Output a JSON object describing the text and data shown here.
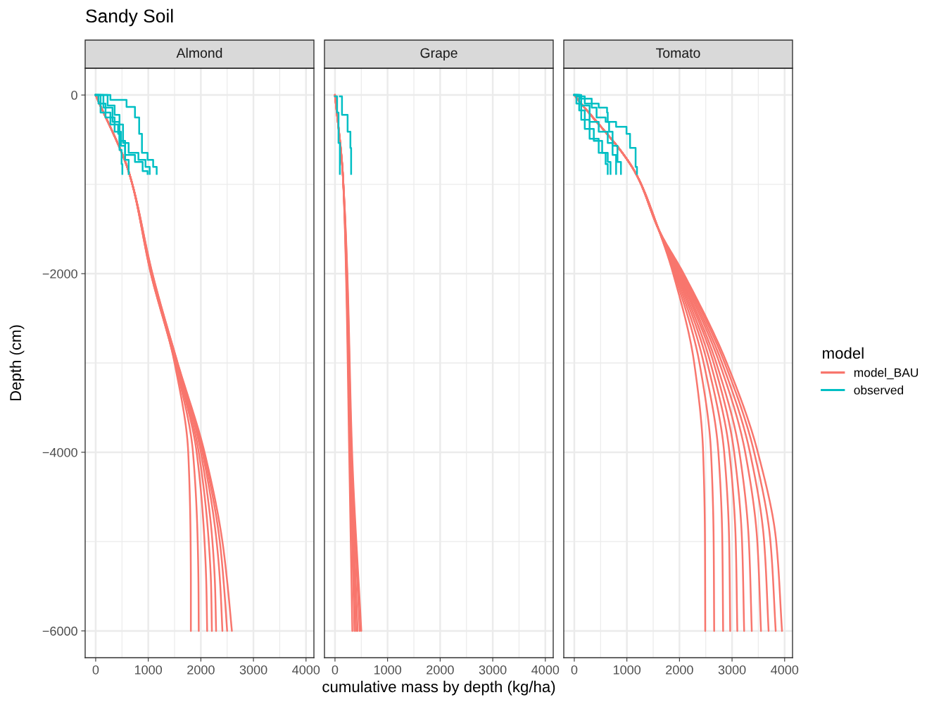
{
  "chart_data": [
    {
      "type": "line",
      "title": "Almond",
      "ylabel": "Depth (cm)",
      "annotations": [
        "Sandy Soil"
      ],
      "legend_title": "model",
      "legend": "right",
      "xlim": [
        -200,
        4150
      ],
      "ylim": [
        -6300,
        300
      ],
      "xticks": [
        0,
        1000,
        2000,
        3000,
        4000
      ],
      "yticks": [
        {
          "value": 0,
          "label": "0"
        },
        {
          "value": -2000,
          "label": "−2000"
        },
        {
          "value": -4000,
          "label": "−4000"
        },
        {
          "value": -6000,
          "label": "−6000"
        }
      ],
      "grid": true,
      "series": [
        {
          "name": "model_BAU",
          "color": "#f8766d",
          "x": [
            0,
            650,
            1050,
            1500,
            1760,
            1805,
            1810,
            1810
          ],
          "values": [
            0,
            -900,
            -2000,
            -3000,
            -4000,
            -5000,
            -5500,
            -6000
          ]
        },
        {
          "color": "#f8766d",
          "x": [
            0,
            650,
            1050,
            1510,
            1850,
            1940,
            1955,
            1960
          ],
          "values": [
            0,
            -900,
            -2000,
            -3000,
            -4000,
            -5000,
            -5500,
            -6000
          ]
        },
        {
          "color": "#f8766d",
          "x": [
            0,
            650,
            1060,
            1520,
            1920,
            2070,
            2105,
            2120
          ],
          "values": [
            0,
            -900,
            -2000,
            -3000,
            -4000,
            -5000,
            -5500,
            -6000
          ]
        },
        {
          "color": "#f8766d",
          "x": [
            0,
            650,
            1060,
            1530,
            1960,
            2150,
            2195,
            2210
          ],
          "values": [
            0,
            -900,
            -2000,
            -3000,
            -4000,
            -5000,
            -5500,
            -6000
          ]
        },
        {
          "color": "#f8766d",
          "x": [
            0,
            650,
            1065,
            1540,
            2000,
            2220,
            2270,
            2290
          ],
          "values": [
            0,
            -900,
            -2000,
            -3000,
            -4000,
            -5000,
            -5500,
            -6000
          ]
        },
        {
          "color": "#f8766d",
          "x": [
            0,
            650,
            1070,
            1550,
            2030,
            2300,
            2370,
            2410
          ],
          "values": [
            0,
            -900,
            -2000,
            -3000,
            -4000,
            -5000,
            -5500,
            -6000
          ]
        },
        {
          "color": "#f8766d",
          "x": [
            0,
            650,
            1075,
            1555,
            2050,
            2360,
            2440,
            2500
          ],
          "values": [
            0,
            -900,
            -2000,
            -3000,
            -4000,
            -5000,
            -5500,
            -6000
          ]
        },
        {
          "color": "#f8766d",
          "x": [
            0,
            650,
            1080,
            1560,
            2070,
            2410,
            2510,
            2590
          ],
          "values": [
            0,
            -900,
            -2000,
            -3000,
            -4000,
            -5000,
            -5500,
            -6000
          ]
        },
        {
          "name": "observed",
          "type": "step",
          "color": "#00bfc4",
          "x": [
            0,
            280,
            587,
            747,
            827,
            880,
            987,
            1093,
            1160
          ],
          "values": [
            0,
            -55,
            -134,
            -252,
            -434,
            -647,
            -725,
            -804,
            -883
          ]
        },
        {
          "type": "step",
          "color": "#00bfc4",
          "x": [
            0,
            227,
            360,
            453,
            520,
            627,
            813,
            947,
            1027
          ],
          "values": [
            0,
            -118,
            -221,
            -331,
            -536,
            -647,
            -725,
            -804,
            -883
          ]
        },
        {
          "type": "step",
          "color": "#00bfc4",
          "x": [
            0,
            147,
            320,
            453,
            560,
            747,
            893,
            987
          ],
          "values": [
            0,
            -142,
            -300,
            -513,
            -670,
            -750,
            -852,
            -883
          ]
        },
        {
          "type": "step",
          "color": "#00bfc4",
          "x": [
            0,
            93,
            280,
            427,
            453,
            493,
            507
          ],
          "values": [
            0,
            -197,
            -331,
            -434,
            -615,
            -773,
            -883
          ]
        },
        {
          "type": "step",
          "color": "#00bfc4",
          "x": [
            0,
            53,
            187,
            360,
            480,
            560,
            627
          ],
          "values": [
            0,
            -95,
            -252,
            -410,
            -568,
            -725,
            -883
          ]
        }
      ]
    },
    {
      "type": "line",
      "title": "Grape",
      "xlabel": "cumulative mass by depth (kg/ha)",
      "xlim": [
        -200,
        4150
      ],
      "ylim": [
        -6300,
        300
      ],
      "xticks": [
        0,
        1000,
        2000,
        3000,
        4000
      ],
      "yticks": [
        0,
        -2000,
        -4000,
        -6000
      ],
      "tick_labels": "x",
      "grid": true,
      "series": [
        {
          "color": "#f8766d",
          "x": [
            0,
            150,
            210,
            270,
            330
          ],
          "values": [
            0,
            -900,
            -2000,
            -4000,
            -6000
          ]
        },
        {
          "color": "#f8766d",
          "x": [
            0,
            150,
            215,
            285,
            370
          ],
          "values": [
            0,
            -900,
            -2000,
            -4000,
            -6000
          ]
        },
        {
          "color": "#f8766d",
          "x": [
            0,
            150,
            220,
            295,
            400
          ],
          "values": [
            0,
            -900,
            -2000,
            -4000,
            -6000
          ]
        },
        {
          "color": "#f8766d",
          "x": [
            0,
            150,
            225,
            305,
            430
          ],
          "values": [
            0,
            -900,
            -2000,
            -4000,
            -6000
          ]
        },
        {
          "color": "#f8766d",
          "x": [
            0,
            150,
            230,
            315,
            470
          ],
          "values": [
            0,
            -900,
            -2000,
            -4000,
            -6000
          ]
        },
        {
          "color": "#f8766d",
          "x": [
            0,
            150,
            235,
            325,
            500
          ],
          "values": [
            0,
            -900,
            -2000,
            -4000,
            -6000
          ]
        },
        {
          "type": "step",
          "color": "#00bfc4",
          "x": [
            0,
            40,
            67,
            93
          ],
          "values": [
            -16,
            -197,
            -536,
            -883
          ]
        },
        {
          "type": "step",
          "color": "#00bfc4",
          "x": [
            93,
            133,
            240,
            293,
            307
          ],
          "values": [
            -16,
            -221,
            -410,
            -591,
            -883
          ]
        }
      ]
    },
    {
      "type": "line",
      "title": "Tomato",
      "xlim": [
        -200,
        4150
      ],
      "ylim": [
        -6300,
        300
      ],
      "xticks": [
        0,
        1000,
        2000,
        3000,
        4000
      ],
      "yticks": [
        0,
        -2000,
        -4000,
        -6000
      ],
      "tick_labels": "x",
      "grid": true,
      "series": [
        {
          "color": "#f8766d",
          "x": [
            0,
            1190,
            1600,
            1880,
            2280,
            2450,
            2485,
            2490
          ],
          "values": [
            0,
            -900,
            -1500,
            -2000,
            -3000,
            -4000,
            -5000,
            -6000
          ]
        },
        {
          "color": "#f8766d",
          "x": [
            0,
            1190,
            1600,
            1900,
            2380,
            2600,
            2650,
            2660
          ],
          "values": [
            0,
            -900,
            -1500,
            -2000,
            -3000,
            -4000,
            -5000,
            -6000
          ]
        },
        {
          "color": "#f8766d",
          "x": [
            0,
            1190,
            1600,
            1920,
            2460,
            2740,
            2815,
            2830
          ],
          "values": [
            0,
            -900,
            -1500,
            -2000,
            -3000,
            -4000,
            -5000,
            -6000
          ]
        },
        {
          "color": "#f8766d",
          "x": [
            0,
            1190,
            1600,
            1940,
            2530,
            2850,
            2945,
            2965
          ],
          "values": [
            0,
            -900,
            -1500,
            -2000,
            -3000,
            -4000,
            -5000,
            -6000
          ]
        },
        {
          "color": "#f8766d",
          "x": [
            0,
            1190,
            1600,
            1960,
            2590,
            2950,
            3070,
            3100
          ],
          "values": [
            0,
            -900,
            -1500,
            -2000,
            -3000,
            -4000,
            -5000,
            -6000
          ]
        },
        {
          "color": "#f8766d",
          "x": [
            0,
            1190,
            1600,
            1980,
            2650,
            3040,
            3190,
            3230
          ],
          "values": [
            0,
            -900,
            -1500,
            -2000,
            -3000,
            -4000,
            -5000,
            -6000
          ]
        },
        {
          "color": "#f8766d",
          "x": [
            0,
            1190,
            1600,
            2000,
            2700,
            3140,
            3320,
            3375
          ],
          "values": [
            0,
            -900,
            -1500,
            -2000,
            -3000,
            -4000,
            -5000,
            -6000
          ]
        },
        {
          "color": "#f8766d",
          "x": [
            0,
            1190,
            1600,
            2020,
            2760,
            3250,
            3480,
            3550
          ],
          "values": [
            0,
            -900,
            -1500,
            -2000,
            -3000,
            -4000,
            -5000,
            -6000
          ]
        },
        {
          "color": "#f8766d",
          "x": [
            0,
            1190,
            1600,
            2040,
            2810,
            3340,
            3610,
            3695
          ],
          "values": [
            0,
            -900,
            -1500,
            -2000,
            -3000,
            -4000,
            -5000,
            -6000
          ]
        },
        {
          "color": "#f8766d",
          "x": [
            0,
            1190,
            1600,
            2060,
            2860,
            3420,
            3730,
            3830
          ],
          "values": [
            0,
            -900,
            -1500,
            -2000,
            -3000,
            -4000,
            -5000,
            -6000
          ]
        },
        {
          "color": "#f8766d",
          "x": [
            0,
            1190,
            1600,
            2080,
            2900,
            3490,
            3840,
            3950
          ],
          "values": [
            0,
            -900,
            -1500,
            -2000,
            -3000,
            -4000,
            -5000,
            -6000
          ]
        },
        {
          "type": "step",
          "color": "#00bfc4",
          "x": [
            0,
            66,
            199,
            464,
            623,
            636,
            795,
            993,
            1060,
            1166,
            1192
          ],
          "values": [
            0,
            -16,
            -95,
            -142,
            -197,
            -300,
            -355,
            -434,
            -591,
            -804,
            -883
          ]
        },
        {
          "type": "step",
          "color": "#00bfc4",
          "x": [
            0,
            106,
            331,
            424,
            596,
            662,
            728,
            821,
            887
          ],
          "values": [
            0,
            -40,
            -142,
            -252,
            -300,
            -410,
            -568,
            -750,
            -883
          ]
        },
        {
          "type": "step",
          "color": "#00bfc4",
          "x": [
            0,
            132,
            291,
            464,
            636,
            728,
            795
          ],
          "values": [
            0,
            -118,
            -300,
            -410,
            -536,
            -670,
            -883
          ]
        },
        {
          "type": "step",
          "color": "#00bfc4",
          "x": [
            0,
            93,
            199,
            371,
            530,
            636,
            689
          ],
          "values": [
            0,
            -173,
            -379,
            -513,
            -647,
            -750,
            -883
          ]
        },
        {
          "type": "step",
          "color": "#00bfc4",
          "x": [
            0,
            40,
            132,
            291,
            464,
            596,
            636
          ],
          "values": [
            0,
            -95,
            -276,
            -489,
            -647,
            -773,
            -883
          ]
        }
      ]
    }
  ]
}
